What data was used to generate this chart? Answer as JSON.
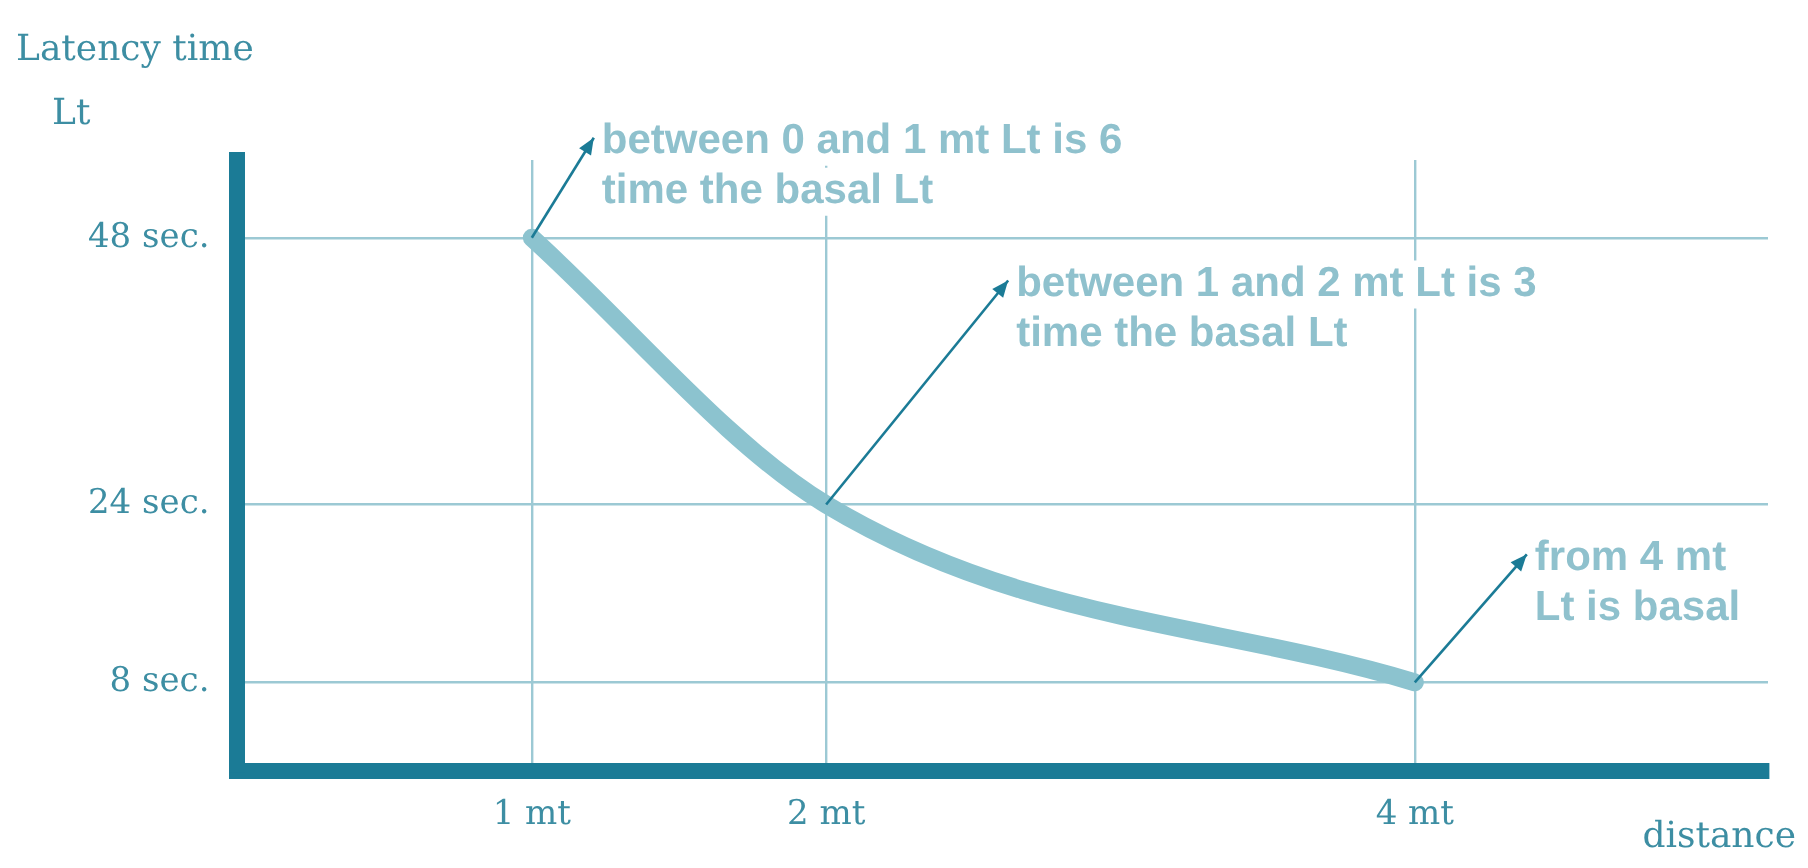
{
  "chart_data": {
    "type": "line",
    "xlabel": "distance",
    "ylabel": "Latency time Lt",
    "x": [
      1,
      2,
      4
    ],
    "series": [
      {
        "color": "#8cc3cf",
        "values": [
          48,
          24,
          8
        ]
      }
    ],
    "xlim": [
      0,
      5.2
    ],
    "ylim": [
      0,
      55
    ],
    "xticks": [
      {
        "value": 1,
        "label": "1 mt"
      },
      {
        "value": 2,
        "label": "2 mt"
      },
      {
        "value": 4,
        "label": "4 mt"
      }
    ],
    "yticks": [
      {
        "value": 8,
        "label": "8 sec."
      },
      {
        "value": 24,
        "label": "24 sec."
      },
      {
        "value": 48,
        "label": "48 sec."
      }
    ],
    "grid": true,
    "legend": false,
    "marker": "none",
    "line_style": "solid",
    "annotations": [
      {
        "text": "between 0 and 1 mt Lt is 6\ntime the basal Lt",
        "x": 1,
        "y": 48
      },
      {
        "text": "between 1 and 2 mt Lt is 3\ntime the basal Lt",
        "x": 2,
        "y": 24
      },
      {
        "text": "from 4 mt\nLt is basal",
        "x": 4,
        "y": 8
      }
    ]
  }
}
